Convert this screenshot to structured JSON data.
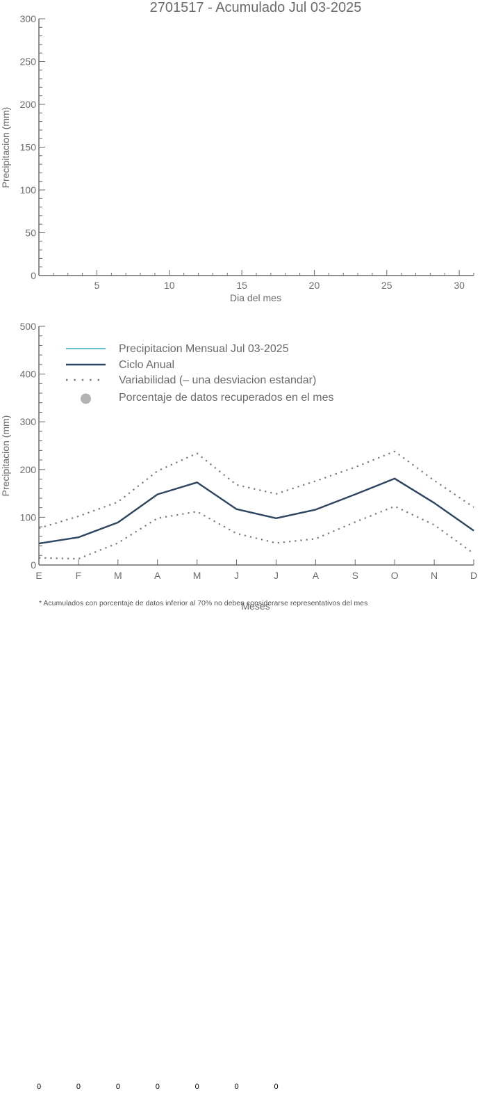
{
  "chart_data": [
    {
      "type": "line",
      "title": "2701517 - Acumulado Jul 03-2025",
      "xlabel": "Dia del mes",
      "ylabel": "Precipitacion (mm)",
      "xlim": [
        1,
        31
      ],
      "ylim": [
        0,
        300
      ],
      "xticks": [
        5,
        10,
        15,
        20,
        25,
        30
      ],
      "yticks": [
        0,
        50,
        100,
        150,
        200,
        250,
        300
      ],
      "grid": false,
      "series": []
    },
    {
      "type": "line",
      "title": "",
      "xlabel": "Meses",
      "ylabel": "Precipitacion (mm)",
      "ylim": [
        0,
        500
      ],
      "yticks": [
        0,
        100,
        200,
        300,
        400,
        500
      ],
      "grid": false,
      "categories": [
        "E",
        "F",
        "M",
        "A",
        "M",
        "J",
        "J",
        "A",
        "S",
        "O",
        "N",
        "D"
      ],
      "legend_position": "top-left",
      "legend": [
        {
          "label": "Precipitacion Mensual Jul 03-2025",
          "style": "line",
          "color": "#4fb8cc"
        },
        {
          "label": "Ciclo Anual",
          "style": "line",
          "color": "#2c4560"
        },
        {
          "label": "Variabilidad (– una desviacion estandar)",
          "style": "dotted",
          "color": "#777777"
        },
        {
          "label": "Porcentaje de datos recuperados en el mes",
          "style": "marker",
          "color": "#b3b3b3"
        }
      ],
      "series": [
        {
          "key": "ciclo",
          "values": [
            45,
            58,
            89,
            148,
            173,
            117,
            98,
            116,
            148,
            181,
            130,
            72
          ],
          "color": "#2c4560",
          "style": "line"
        },
        {
          "key": "upper",
          "values": [
            77,
            102,
            132,
            197,
            234,
            168,
            149,
            176,
            205,
            238,
            177,
            121
          ],
          "color": "#777777",
          "style": "dotted"
        },
        {
          "key": "lower",
          "values": [
            15,
            13,
            46,
            98,
            112,
            66,
            46,
            55,
            90,
            123,
            84,
            24
          ],
          "color": "#777777",
          "style": "dotted"
        }
      ],
      "footnote": "* Acumulados con porcentaje de datos inferior al 70% no deben considerarse representativos del mes",
      "percentages": [
        "0",
        "0",
        "0",
        "0",
        "0",
        "0",
        "0"
      ]
    }
  ]
}
